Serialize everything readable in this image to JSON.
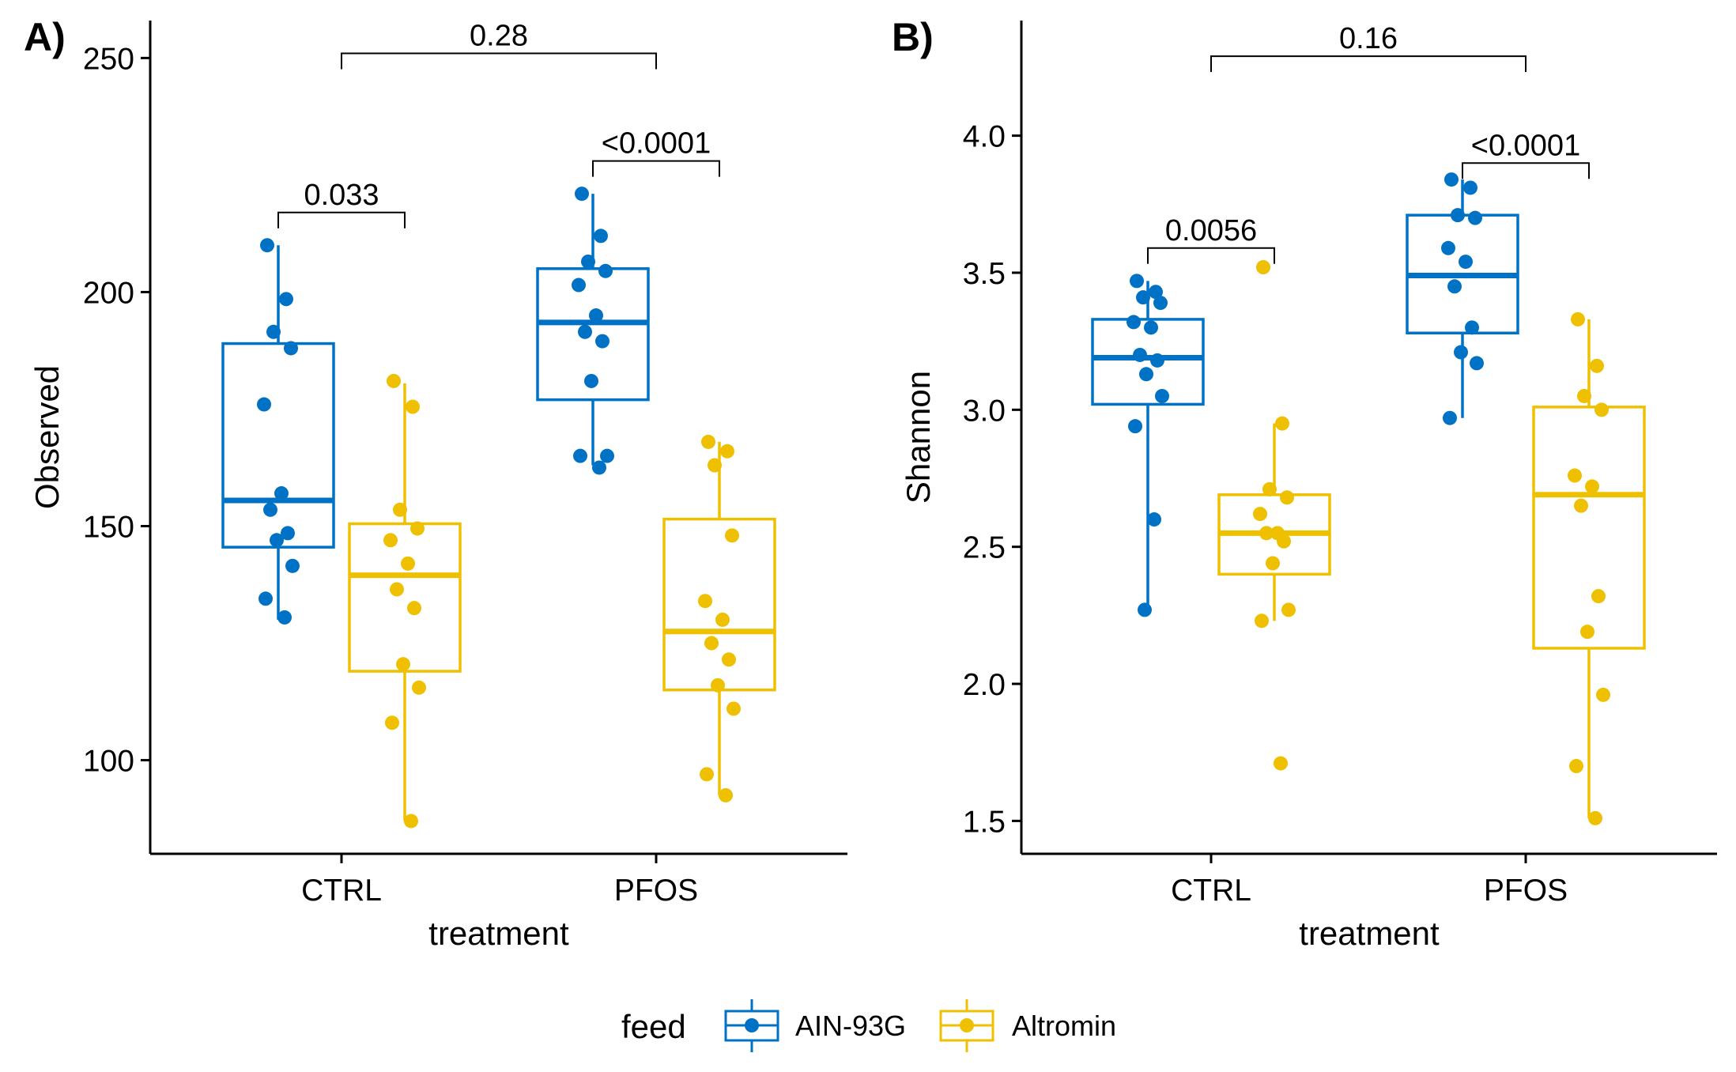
{
  "panels": [
    {
      "tag": "A)"
    },
    {
      "tag": "B)"
    }
  ],
  "legend": {
    "title": "feed",
    "entries": [
      {
        "label": "AIN-93G",
        "color": "#0072C6"
      },
      {
        "label": "Altromin",
        "color": "#EFC000"
      }
    ]
  },
  "chart_data": [
    {
      "type": "box",
      "panel": "A)",
      "title": "",
      "xlabel": "treatment",
      "ylabel": "Observed",
      "categories": [
        "CTRL",
        "PFOS"
      ],
      "ylim": [
        80,
        258
      ],
      "yticks": [
        100,
        150,
        200,
        250
      ],
      "yticklabels": [
        "100",
        "150",
        "200",
        "250"
      ],
      "series": [
        {
          "name": "AIN-93G",
          "color": "#0072C6",
          "boxes": [
            {
              "category": "CTRL",
              "min": 130,
              "q1": 145.5,
              "median": 155.5,
              "q3": 189,
              "max": 210
            },
            {
              "category": "PFOS",
              "min": 163,
              "q1": 177,
              "median": 193.5,
              "q3": 205,
              "max": 221
            }
          ],
          "points": [
            {
              "category": "CTRL",
              "values": [
                210,
                198.5,
                191.5,
                188,
                176,
                157,
                153.5,
                148.5,
                147,
                141.5,
                134.5,
                130.5
              ]
            },
            {
              "category": "PFOS",
              "values": [
                221,
                212,
                206.5,
                204.5,
                201.5,
                195,
                191.5,
                189.5,
                181,
                165,
                165,
                162.5
              ]
            }
          ]
        },
        {
          "name": "Altromin",
          "color": "#EFC000",
          "boxes": [
            {
              "category": "CTRL",
              "min": 87,
              "q1": 119,
              "median": 139.5,
              "q3": 150.5,
              "max": 180.5
            },
            {
              "category": "PFOS",
              "min": 92.5,
              "q1": 115,
              "median": 127.5,
              "q3": 151.5,
              "max": 168
            }
          ],
          "points": [
            {
              "category": "CTRL",
              "values": [
                181,
                175.5,
                153.5,
                149.5,
                147,
                142,
                136.5,
                132.5,
                120.5,
                115.5,
                108,
                87
              ]
            },
            {
              "category": "PFOS",
              "values": [
                168,
                166,
                163,
                148,
                134,
                130,
                125,
                121.5,
                116,
                111,
                97,
                92.5
              ]
            }
          ]
        }
      ],
      "comparisons": [
        {
          "label": "0.033",
          "from": "CTRL / AIN-93G",
          "to": "CTRL / Altromin",
          "y": 217
        },
        {
          "label": "<0.0001",
          "from": "PFOS / AIN-93G",
          "to": "PFOS / Altromin",
          "y": 228
        },
        {
          "label": "0.28",
          "from": "CTRL",
          "to": "PFOS",
          "y": 251
        }
      ],
      "grid": false,
      "legend_position": "bottom"
    },
    {
      "type": "box",
      "panel": "B)",
      "title": "",
      "xlabel": "treatment",
      "ylabel": "Shannon",
      "categories": [
        "CTRL",
        "PFOS"
      ],
      "ylim": [
        1.38,
        4.42
      ],
      "yticks": [
        1.5,
        2.0,
        2.5,
        3.0,
        3.5,
        4.0
      ],
      "yticklabels": [
        "1.5",
        "2.0",
        "2.5",
        "3.0",
        "3.5",
        "4.0"
      ],
      "series": [
        {
          "name": "AIN-93G",
          "color": "#0072C6",
          "boxes": [
            {
              "category": "CTRL",
              "min": 2.27,
              "q1": 3.02,
              "median": 3.19,
              "q3": 3.33,
              "max": 3.47
            },
            {
              "category": "PFOS",
              "min": 2.97,
              "q1": 3.28,
              "median": 3.49,
              "q3": 3.71,
              "max": 3.84
            }
          ],
          "points": [
            {
              "category": "CTRL",
              "values": [
                3.47,
                3.43,
                3.41,
                3.39,
                3.32,
                3.3,
                3.2,
                3.18,
                3.13,
                3.05,
                2.94,
                2.6,
                2.27
              ]
            },
            {
              "category": "PFOS",
              "values": [
                3.84,
                3.81,
                3.71,
                3.7,
                3.59,
                3.54,
                3.45,
                3.3,
                3.21,
                3.17,
                2.97
              ]
            }
          ]
        },
        {
          "name": "Altromin",
          "color": "#EFC000",
          "boxes": [
            {
              "category": "CTRL",
              "min": 2.23,
              "q1": 2.4,
              "median": 2.55,
              "q3": 2.69,
              "max": 2.95
            },
            {
              "category": "PFOS",
              "min": 1.51,
              "q1": 2.13,
              "median": 2.69,
              "q3": 3.01,
              "max": 3.33
            }
          ],
          "points": [
            {
              "category": "CTRL",
              "values": [
                3.52,
                2.95,
                2.71,
                2.68,
                2.62,
                2.55,
                2.55,
                2.52,
                2.44,
                2.27,
                2.23,
                1.71
              ]
            },
            {
              "category": "PFOS",
              "values": [
                3.33,
                3.16,
                3.05,
                3.0,
                2.76,
                2.72,
                2.65,
                2.32,
                2.19,
                1.96,
                1.7,
                1.51
              ]
            }
          ]
        }
      ],
      "comparisons": [
        {
          "label": "0.0056",
          "from": "CTRL / AIN-93G",
          "to": "CTRL / Altromin",
          "y": 3.59
        },
        {
          "label": "<0.0001",
          "from": "PFOS / AIN-93G",
          "to": "PFOS / Altromin",
          "y": 3.9
        },
        {
          "label": "0.16",
          "from": "CTRL",
          "to": "PFOS",
          "y": 4.29
        }
      ],
      "grid": false,
      "legend_position": "bottom"
    }
  ]
}
